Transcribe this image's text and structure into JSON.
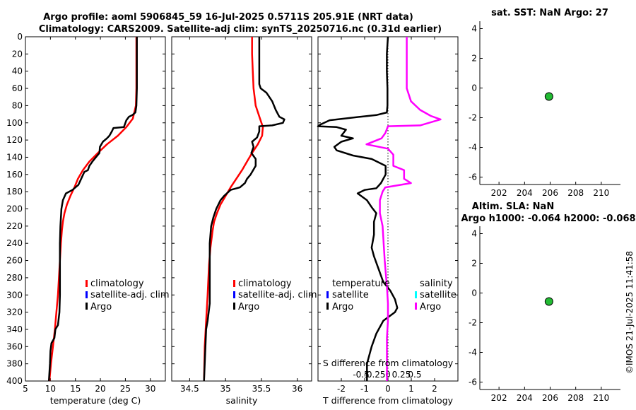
{
  "figure": {
    "title_line1": "Argo profile: aoml 5906845_59 16-Jul-2025 0.5711S 205.91E (NRT data)",
    "title_line2": "Climatology: CARS2009. Satellite-adj clim: synTS_20250716.nc (0.31d earlier)",
    "watermark": "©IMOS 21-Jul-2025 11:41:58"
  },
  "colors": {
    "climatology": "#ff0000",
    "satellite": "#0000ff",
    "argo": "#000000",
    "argo_salinity_diff": "#ff00ff",
    "satellite_salinity": "#00ffff",
    "marker": "#22bb33"
  },
  "chart_data": [
    {
      "id": "temperature",
      "type": "line",
      "xlabel": "temperature (deg C)",
      "ylabel": "",
      "xlim": [
        5,
        33
      ],
      "ylim": [
        400,
        0
      ],
      "xticks": [
        5,
        10,
        15,
        20,
        25,
        30
      ],
      "yticks": [
        0,
        20,
        40,
        60,
        80,
        100,
        120,
        140,
        160,
        180,
        200,
        220,
        240,
        260,
        280,
        300,
        320,
        340,
        360,
        380,
        400
      ],
      "legend": [
        "climatology",
        "satellite-adj. clim",
        "Argo"
      ],
      "series": [
        {
          "name": "climatology",
          "color": "#ff0000",
          "points": [
            [
              27.2,
              0
            ],
            [
              27.2,
              20
            ],
            [
              27.2,
              40
            ],
            [
              27.2,
              60
            ],
            [
              27.1,
              80
            ],
            [
              26.5,
              95
            ],
            [
              25.2,
              105
            ],
            [
              23.5,
              115
            ],
            [
              21.3,
              125
            ],
            [
              19.5,
              135
            ],
            [
              17.8,
              145
            ],
            [
              16.5,
              155
            ],
            [
              15.5,
              165
            ],
            [
              14.8,
              175
            ],
            [
              14.0,
              185
            ],
            [
              13.3,
              195
            ],
            [
              12.8,
              205
            ],
            [
              12.5,
              215
            ],
            [
              12.3,
              225
            ],
            [
              12.1,
              240
            ],
            [
              11.9,
              260
            ],
            [
              11.7,
              280
            ],
            [
              11.5,
              300
            ],
            [
              11.2,
              320
            ],
            [
              10.9,
              340
            ],
            [
              10.5,
              360
            ],
            [
              10.1,
              380
            ],
            [
              9.8,
              400
            ]
          ]
        },
        {
          "name": "Argo",
          "color": "#000000",
          "points": [
            [
              27.3,
              0
            ],
            [
              27.3,
              20
            ],
            [
              27.3,
              40
            ],
            [
              27.3,
              60
            ],
            [
              27.2,
              80
            ],
            [
              27.0,
              88
            ],
            [
              26.4,
              91
            ],
            [
              25.7,
              93
            ],
            [
              25.2,
              97
            ],
            [
              24.7,
              105
            ],
            [
              22.6,
              106
            ],
            [
              22.3,
              110
            ],
            [
              21.8,
              115
            ],
            [
              21.3,
              118
            ],
            [
              20.5,
              122
            ],
            [
              19.9,
              128
            ],
            [
              19.8,
              135
            ],
            [
              19.1,
              140
            ],
            [
              18.4,
              145
            ],
            [
              17.8,
              150
            ],
            [
              17.5,
              155
            ],
            [
              16.8,
              157
            ],
            [
              16.4,
              162
            ],
            [
              16.0,
              167
            ],
            [
              15.6,
              172
            ],
            [
              14.4,
              178
            ],
            [
              13.1,
              182
            ],
            [
              12.5,
              190
            ],
            [
              12.2,
              200
            ],
            [
              12.1,
              210
            ],
            [
              12.0,
              220
            ],
            [
              11.9,
              240
            ],
            [
              11.9,
              260
            ],
            [
              11.9,
              280
            ],
            [
              11.9,
              300
            ],
            [
              11.8,
              320
            ],
            [
              11.5,
              335
            ],
            [
              11.0,
              340
            ],
            [
              10.8,
              350
            ],
            [
              10.2,
              356
            ],
            [
              10.0,
              365
            ],
            [
              9.9,
              380
            ],
            [
              9.7,
              400
            ]
          ]
        }
      ]
    },
    {
      "id": "salinity",
      "type": "line",
      "xlabel": "salinity",
      "ylabel": "",
      "xlim": [
        34.25,
        36.2
      ],
      "ylim": [
        400,
        0
      ],
      "xticks": [
        34.5,
        35,
        35.5,
        36
      ],
      "xticklabels": [
        "34.5",
        "35",
        "35.5",
        "36"
      ],
      "legend": [
        "climatology",
        "satellite-adj. clim",
        "Argo"
      ],
      "series": [
        {
          "name": "climatology",
          "color": "#ff0000",
          "points": [
            [
              35.37,
              0
            ],
            [
              35.37,
              20
            ],
            [
              35.38,
              40
            ],
            [
              35.39,
              60
            ],
            [
              35.42,
              80
            ],
            [
              35.48,
              95
            ],
            [
              35.52,
              105
            ],
            [
              35.51,
              115
            ],
            [
              35.45,
              125
            ],
            [
              35.37,
              135
            ],
            [
              35.3,
              145
            ],
            [
              35.23,
              155
            ],
            [
              35.15,
              165
            ],
            [
              35.07,
              175
            ],
            [
              35.0,
              185
            ],
            [
              34.93,
              195
            ],
            [
              34.88,
              205
            ],
            [
              34.84,
              215
            ],
            [
              34.82,
              225
            ],
            [
              34.79,
              245
            ],
            [
              34.77,
              265
            ],
            [
              34.75,
              300
            ],
            [
              34.73,
              330
            ],
            [
              34.71,
              360
            ],
            [
              34.7,
              400
            ]
          ]
        },
        {
          "name": "Argo",
          "color": "#000000",
          "points": [
            [
              35.47,
              0
            ],
            [
              35.47,
              20
            ],
            [
              35.47,
              40
            ],
            [
              35.47,
              55
            ],
            [
              35.49,
              60
            ],
            [
              35.57,
              65
            ],
            [
              35.65,
              75
            ],
            [
              35.7,
              85
            ],
            [
              35.75,
              93
            ],
            [
              35.82,
              96
            ],
            [
              35.8,
              100
            ],
            [
              35.65,
              103
            ],
            [
              35.47,
              104
            ],
            [
              35.47,
              110
            ],
            [
              35.44,
              117
            ],
            [
              35.37,
              122
            ],
            [
              35.39,
              128
            ],
            [
              35.36,
              135
            ],
            [
              35.42,
              142
            ],
            [
              35.42,
              150
            ],
            [
              35.35,
              160
            ],
            [
              35.3,
              165
            ],
            [
              35.27,
              170
            ],
            [
              35.2,
              175
            ],
            [
              35.07,
              178
            ],
            [
              34.98,
              185
            ],
            [
              34.93,
              190
            ],
            [
              34.87,
              200
            ],
            [
              34.83,
              210
            ],
            [
              34.8,
              220
            ],
            [
              34.78,
              240
            ],
            [
              34.78,
              260
            ],
            [
              34.78,
              290
            ],
            [
              34.78,
              310
            ],
            [
              34.75,
              330
            ],
            [
              34.73,
              340
            ],
            [
              34.72,
              360
            ],
            [
              34.71,
              380
            ],
            [
              34.7,
              400
            ]
          ]
        }
      ]
    },
    {
      "id": "difference",
      "type": "line",
      "xlabel": "T difference from climatology",
      "xlabel_top": "S difference from climatology",
      "xlim": [
        -3,
        3
      ],
      "ylim": [
        400,
        0
      ],
      "xticks": [
        -2,
        -1,
        0,
        1,
        2
      ],
      "xticklabels": [
        "-2",
        "-1",
        "0",
        "1",
        "2"
      ],
      "sticks": [
        -0.5,
        -0.25,
        0,
        0.25,
        0.5
      ],
      "sticklabels": [
        "-0.5",
        "-0.25",
        "0",
        "0.25",
        "0.5"
      ],
      "s_scale": 2.3,
      "legend_temperature": [
        "temperature",
        "satellite",
        "Argo"
      ],
      "legend_salinity": [
        "salinity",
        "satellite",
        "Argo"
      ],
      "series": [
        {
          "name": "T difference",
          "color": "#000000",
          "points": [
            [
              0.0,
              0
            ],
            [
              -0.05,
              20
            ],
            [
              -0.05,
              40
            ],
            [
              -0.02,
              60
            ],
            [
              -0.02,
              80
            ],
            [
              -0.05,
              88
            ],
            [
              -0.5,
              91
            ],
            [
              -1.2,
              93
            ],
            [
              -2.5,
              97
            ],
            [
              -2.9,
              102
            ],
            [
              -3.0,
              104
            ],
            [
              -2.2,
              105
            ],
            [
              -1.8,
              108
            ],
            [
              -2.0,
              115
            ],
            [
              -1.5,
              118
            ],
            [
              -2.0,
              122
            ],
            [
              -2.3,
              128
            ],
            [
              -2.2,
              132
            ],
            [
              -1.5,
              138
            ],
            [
              -0.7,
              142
            ],
            [
              -0.1,
              150
            ],
            [
              -0.1,
              160
            ],
            [
              -0.3,
              170
            ],
            [
              -0.5,
              176
            ],
            [
              -1.0,
              178
            ],
            [
              -1.3,
              182
            ],
            [
              -0.9,
              190
            ],
            [
              -0.7,
              198
            ],
            [
              -0.5,
              205
            ],
            [
              -0.6,
              215
            ],
            [
              -0.6,
              230
            ],
            [
              -0.7,
              245
            ],
            [
              -0.6,
              255
            ],
            [
              -0.4,
              270
            ],
            [
              -0.2,
              285
            ],
            [
              0.1,
              295
            ],
            [
              0.3,
              305
            ],
            [
              0.4,
              315
            ],
            [
              0.3,
              320
            ],
            [
              -0.2,
              330
            ],
            [
              -0.5,
              345
            ],
            [
              -0.7,
              360
            ],
            [
              -0.9,
              380
            ],
            [
              -0.9,
              400
            ]
          ]
        },
        {
          "name": "S difference",
          "color": "#ff00ff",
          "points": [
            [
              0.35,
              0
            ],
            [
              0.35,
              20
            ],
            [
              0.35,
              40
            ],
            [
              0.35,
              60
            ],
            [
              0.43,
              75
            ],
            [
              0.6,
              85
            ],
            [
              0.8,
              92
            ],
            [
              0.98,
              96
            ],
            [
              0.6,
              103
            ],
            [
              0.0,
              104
            ],
            [
              -0.05,
              112
            ],
            [
              -0.12,
              118
            ],
            [
              -0.4,
              125
            ],
            [
              0.0,
              130
            ],
            [
              0.1,
              137
            ],
            [
              0.1,
              150
            ],
            [
              0.3,
              155
            ],
            [
              0.3,
              165
            ],
            [
              0.43,
              170
            ],
            [
              -0.05,
              175
            ],
            [
              -0.1,
              180
            ],
            [
              -0.15,
              190
            ],
            [
              -0.15,
              205
            ],
            [
              -0.1,
              220
            ],
            [
              -0.08,
              240
            ],
            [
              -0.06,
              260
            ],
            [
              -0.02,
              290
            ],
            [
              0.0,
              310
            ],
            [
              0.0,
              330
            ],
            [
              -0.02,
              350
            ],
            [
              -0.02,
              370
            ],
            [
              -0.02,
              385
            ],
            [
              -0.02,
              400
            ]
          ]
        }
      ]
    },
    {
      "id": "sst",
      "type": "scatter",
      "title": "sat. SST: NaN Argo: 27",
      "xlim": [
        200.5,
        211.5
      ],
      "ylim": [
        -6.5,
        4.5
      ],
      "xticks": [
        202,
        204,
        206,
        208,
        210
      ],
      "yticks": [
        -6,
        -4,
        -2,
        0,
        2,
        4
      ],
      "points": [
        {
          "x": 205.91,
          "y": -0.57
        }
      ]
    },
    {
      "id": "sla",
      "type": "scatter",
      "title": "Altim. SLA: NaN",
      "title_line2": "Argo h1000: -0.064 h2000: -0.068",
      "xlim": [
        200.5,
        211.5
      ],
      "ylim": [
        -6.5,
        4.5
      ],
      "xticks": [
        202,
        204,
        206,
        208,
        210
      ],
      "yticks": [
        -6,
        -4,
        -2,
        0,
        2,
        4
      ],
      "points": [
        {
          "x": 205.91,
          "y": -0.57
        }
      ]
    }
  ]
}
